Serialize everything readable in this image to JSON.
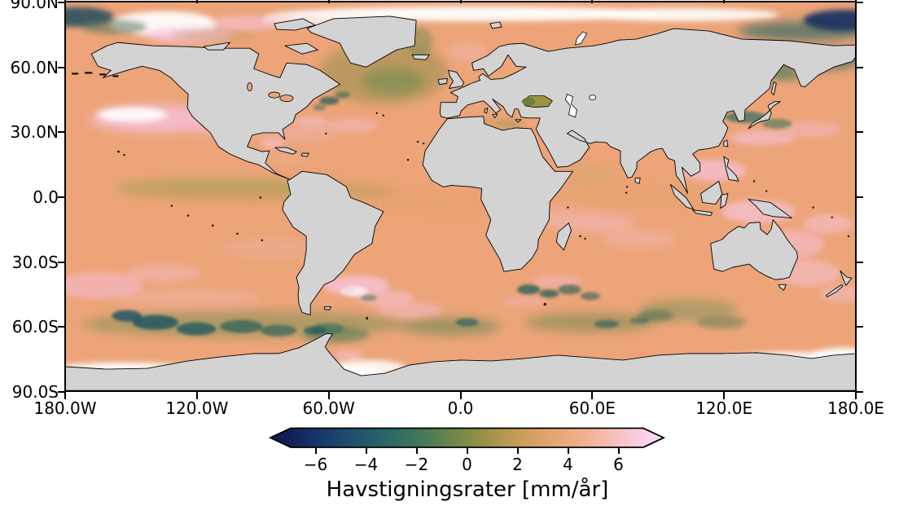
{
  "figure": {
    "background_color": "#ffffff",
    "land_color": "#d3d3d3",
    "coastline_color": "#000000",
    "ocean_base_color": "#eca478",
    "no_data_color": "#ffffff"
  },
  "chart_data": {
    "type": "heatmap",
    "subtype": "geographic field map (plate carrée / equirectangular world map)",
    "title": "",
    "xlabel": "",
    "ylabel": "",
    "lon_range": [
      -180,
      180
    ],
    "lat_range": [
      -90,
      90
    ],
    "x_tick_labels": [
      "180.0W",
      "120.0W",
      "60.0W",
      "0.0",
      "60.0E",
      "120.0E",
      "180.0E"
    ],
    "y_tick_labels": [
      "90.0N",
      "60.0N",
      "30.0N",
      "0.0",
      "30.0S",
      "60.0S",
      "90.0S"
    ],
    "grid": false,
    "land": "gray, no data over land",
    "colorbar": {
      "label": "Havstigningsrater [mm/år]",
      "orientation": "horizontal",
      "position": "bottom center",
      "tick_values": [
        -6,
        -4,
        -2,
        0,
        2,
        4,
        6
      ],
      "tick_labels": [
        "−6",
        "−4",
        "−2",
        "0",
        "2",
        "4",
        "6"
      ],
      "vmin": -7,
      "vmax": 7,
      "extend": "both",
      "under_color": "#101b4e",
      "over_color": "#fdddf5",
      "stops": [
        {
          "value": -7,
          "color": "#131f55"
        },
        {
          "value": -6,
          "color": "#16356a"
        },
        {
          "value": -5,
          "color": "#1c486c"
        },
        {
          "value": -4,
          "color": "#22596b"
        },
        {
          "value": -3,
          "color": "#2d6965"
        },
        {
          "value": -2,
          "color": "#40755c"
        },
        {
          "value": -1,
          "color": "#5e8150"
        },
        {
          "value": 0,
          "color": "#808b48"
        },
        {
          "value": 1,
          "color": "#a5934a"
        },
        {
          "value": 2,
          "color": "#c89c58"
        },
        {
          "value": 3,
          "color": "#dfa26a"
        },
        {
          "value": 4,
          "color": "#edaa80"
        },
        {
          "value": 5,
          "color": "#f3b499"
        },
        {
          "value": 6,
          "color": "#f8c2c3"
        },
        {
          "value": 7,
          "color": "#fbd0e8"
        }
      ]
    },
    "features": [
      {
        "region": "Global ocean mean",
        "value_mm_per_yr": "about +2 to +3",
        "appearance": "salmon/orange"
      },
      {
        "region": "North Pacific 25-40N, 180-140W",
        "value_mm_per_yr": "+5 to +7",
        "appearance": "pink with white maxima"
      },
      {
        "region": "Western tropical Pacific, Philippine Sea and Coral Sea",
        "value_mm_per_yr": "+4 to +6",
        "appearance": "pink patches"
      },
      {
        "region": "Eastern equatorial Pacific band",
        "value_mm_per_yr": "0 to +1",
        "appearance": "olive-green band"
      },
      {
        "region": "Subpolar North Atlantic south of Greenland/Iceland",
        "value_mm_per_yr": "0 to +1",
        "appearance": "olive-green"
      },
      {
        "region": "Gulf Stream and Kuroshio extension eddies",
        "value_mm_per_yr": "-2 to -5",
        "appearance": "dark teal specks"
      },
      {
        "region": "Southern Ocean 50-65S, strongest in South Pacific sector",
        "value_mm_per_yr": "-2 to -6",
        "appearance": "green to dark teal eddy band"
      },
      {
        "region": "Agulhas retroflection and Brazil-Malvinas confluence",
        "value_mm_per_yr": "mixed -4 to +6",
        "appearance": "alternating teal and pink/white eddies"
      },
      {
        "region": "Argentine Basin ~40S 45W",
        "value_mm_per_yr": "+4 to +7",
        "appearance": "pink/white"
      },
      {
        "region": "Baltic Sea",
        "value_mm_per_yr": "+4 to +5",
        "appearance": "pink"
      },
      {
        "region": "Black Sea",
        "value_mm_per_yr": "about 0",
        "appearance": "olive"
      },
      {
        "region": "Bering Sea and high-Arctic bands",
        "value_mm_per_yr": "-2 to -6",
        "appearance": "teal/navy"
      },
      {
        "region": "Caspian Sea, central Arctic cap, Antarctic coastal band",
        "value_mm_per_yr": "no data",
        "appearance": "white"
      },
      {
        "region": "Land",
        "value_mm_per_yr": "no data",
        "appearance": "gray"
      }
    ]
  }
}
